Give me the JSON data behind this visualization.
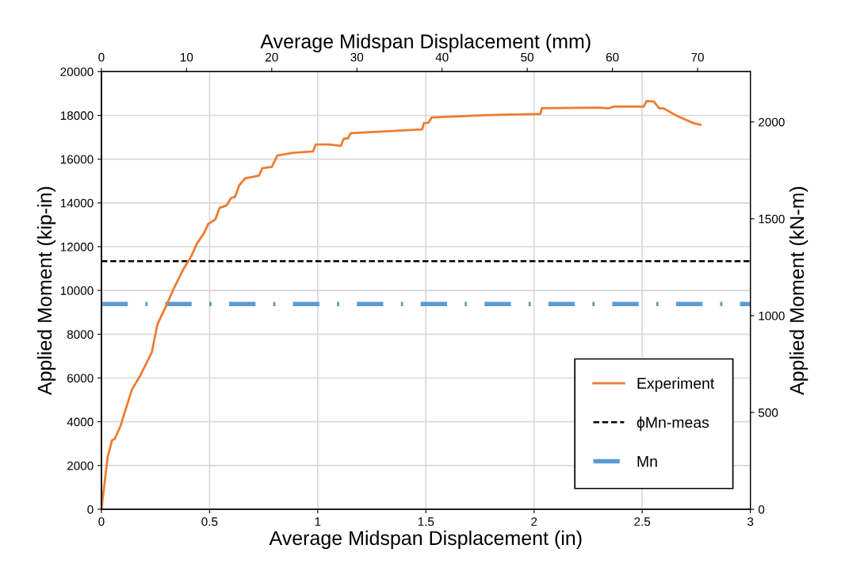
{
  "chart_data": {
    "type": "line",
    "xlabel": "Average Midspan Displacement (in)",
    "ylabel": "Applied Moment (kip-in)",
    "y2label": "Applied Moment (kN-m)",
    "x2label": "Average Midspan Displacement (mm)",
    "xlim": [
      0,
      3
    ],
    "xticks": [
      0,
      0.5,
      1,
      1.5,
      2,
      2.5,
      3
    ],
    "ylim": [
      0,
      20000
    ],
    "yticks": [
      0,
      2000,
      4000,
      6000,
      8000,
      10000,
      12000,
      14000,
      16000,
      18000,
      20000
    ],
    "y2lim": [
      0,
      2260
    ],
    "y2ticks": [
      0,
      500,
      1000,
      1500,
      2000
    ],
    "x2lim": [
      0,
      76.2
    ],
    "x2ticks": [
      0,
      10,
      20,
      30,
      40,
      50,
      60,
      70
    ],
    "grid": true,
    "legend": "bottom right",
    "marker": "none",
    "line_style": "solid",
    "series": [
      {
        "name": "Experiment",
        "color": "#ed7d31",
        "x": [
          0,
          0.029,
          0.049,
          0.062,
          0.088,
          0.141,
          0.18,
          0.233,
          0.259,
          0.297,
          0.337,
          0.376,
          0.415,
          0.442,
          0.474,
          0.494,
          0.527,
          0.546,
          0.579,
          0.599,
          0.618,
          0.637,
          0.664,
          0.729,
          0.743,
          0.788,
          0.813,
          0.886,
          0.978,
          0.991,
          1.05,
          1.107,
          1.121,
          1.139,
          1.153,
          1.483,
          1.491,
          1.513,
          1.526,
          1.781,
          2.029,
          2.036,
          2.304,
          2.344,
          2.37,
          2.507,
          2.52,
          2.553,
          2.579,
          2.599,
          2.658,
          2.736,
          2.769
        ],
        "values": [
          0,
          2390,
          3150,
          3220,
          3800,
          5470,
          6120,
          7170,
          8460,
          9240,
          10140,
          10920,
          11560,
          12150,
          12610,
          13040,
          13250,
          13770,
          13890,
          14220,
          14280,
          14800,
          15120,
          15250,
          15580,
          15650,
          16160,
          16290,
          16350,
          16670,
          16670,
          16610,
          16940,
          16940,
          17190,
          17360,
          17650,
          17670,
          17900,
          18010,
          18070,
          18330,
          18360,
          18320,
          18400,
          18400,
          18660,
          18640,
          18320,
          18320,
          17990,
          17650,
          17570
        ]
      }
    ],
    "ref_lines": [
      {
        "axis": "y",
        "value": 11340,
        "label": "ϕMn-meas",
        "color": "#000000",
        "line_style": "dashed"
      },
      {
        "axis": "y",
        "value": 9380,
        "label": "Mn",
        "color": "#5b9bd5",
        "line_style": "dashdot"
      }
    ]
  }
}
